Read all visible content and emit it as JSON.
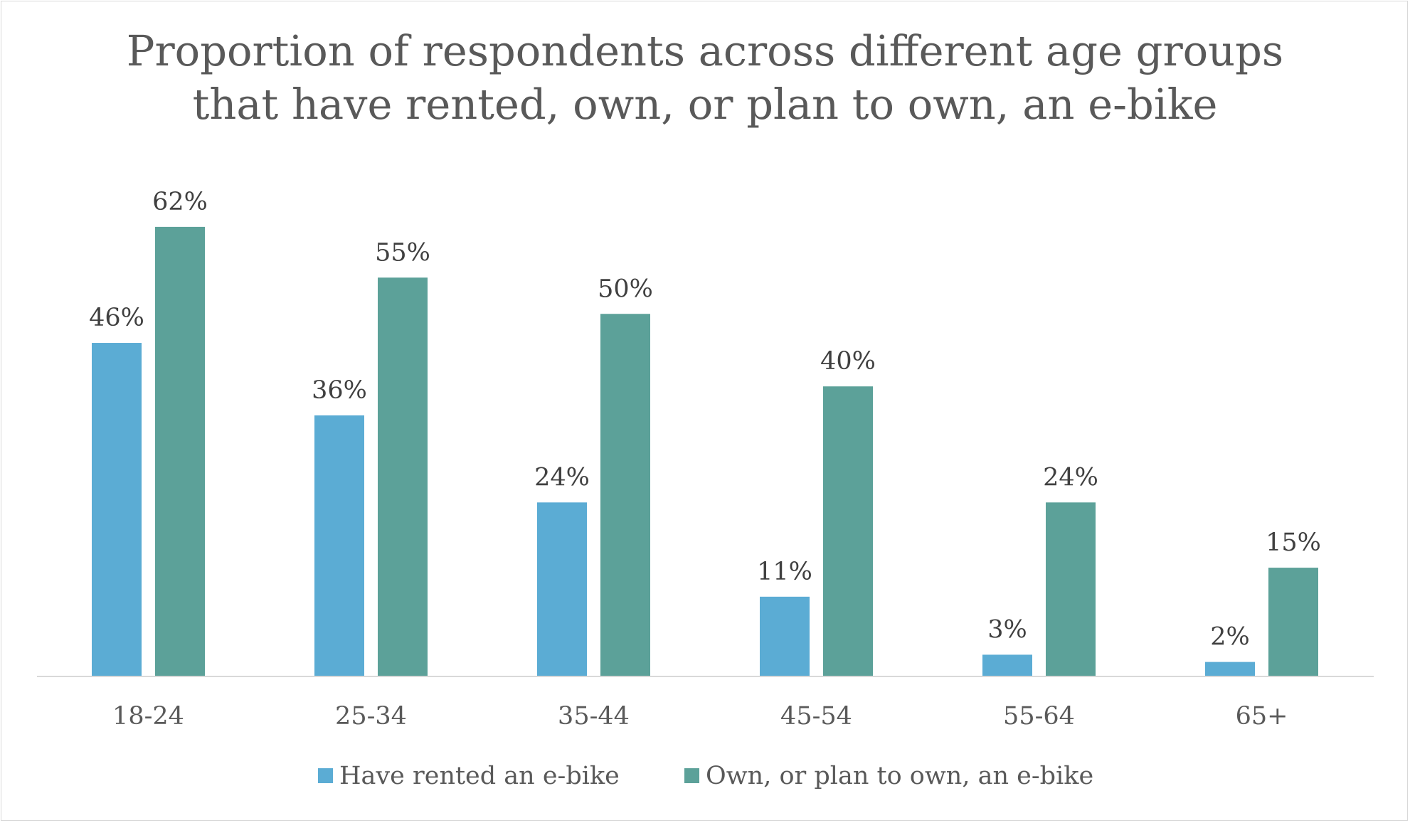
{
  "chart_data": {
    "type": "bar",
    "title_lines": [
      "Proportion of respondents across different age groups",
      "that have rented, own, or plan to own, an e-bike"
    ],
    "categories": [
      "18-24",
      "25-34",
      "35-44",
      "45-54",
      "55-64",
      "65+"
    ],
    "series": [
      {
        "name": "Have rented an e-bike",
        "color": "#5BACD4",
        "values": [
          46,
          36,
          24,
          11,
          3,
          2
        ],
        "labels": [
          "46%",
          "36%",
          "24%",
          "11%",
          "3%",
          "2%"
        ]
      },
      {
        "name": "Own, or plan to own, an e-bike",
        "color": "#5CA199",
        "values": [
          62,
          55,
          50,
          40,
          24,
          15
        ],
        "labels": [
          "62%",
          "55%",
          "50%",
          "40%",
          "24%",
          "15%"
        ]
      }
    ],
    "ylim": [
      0,
      70
    ],
    "grid": false,
    "legend_position": "bottom",
    "xlabel": "",
    "ylabel": ""
  }
}
